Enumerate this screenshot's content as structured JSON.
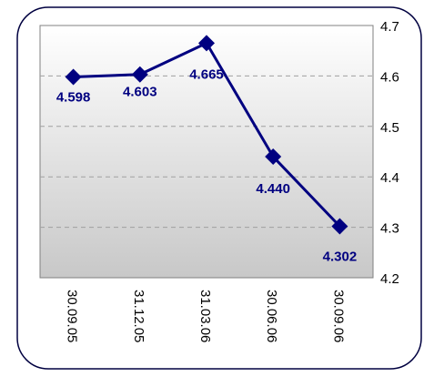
{
  "chart_data": {
    "type": "line",
    "categories": [
      "30.09.05",
      "31.12.05",
      "31.03.06",
      "30.06.06",
      "30.09.06"
    ],
    "series": [
      {
        "values": [
          4.598,
          4.603,
          4.665,
          4.44,
          4.302
        ]
      }
    ],
    "data_labels": [
      "4.598",
      "4.603",
      "4.665",
      "4.440",
      "4.302"
    ],
    "y_ticks": [
      "4.2",
      "4.3",
      "4.4",
      "4.5",
      "4.6",
      "4.7"
    ],
    "ylim": [
      4.2,
      4.7
    ],
    "y_axis_side": "right",
    "x_tick_rotation": "vertical",
    "grid": "horizontal dashed",
    "legend": "none",
    "colors": {
      "series": "#000080",
      "data_label": "#000080",
      "plot_gradient_top": "#ffffff",
      "plot_gradient_bottom": "#c8c8c8",
      "frame": "#000040",
      "grid": "#a0a0a0"
    }
  }
}
